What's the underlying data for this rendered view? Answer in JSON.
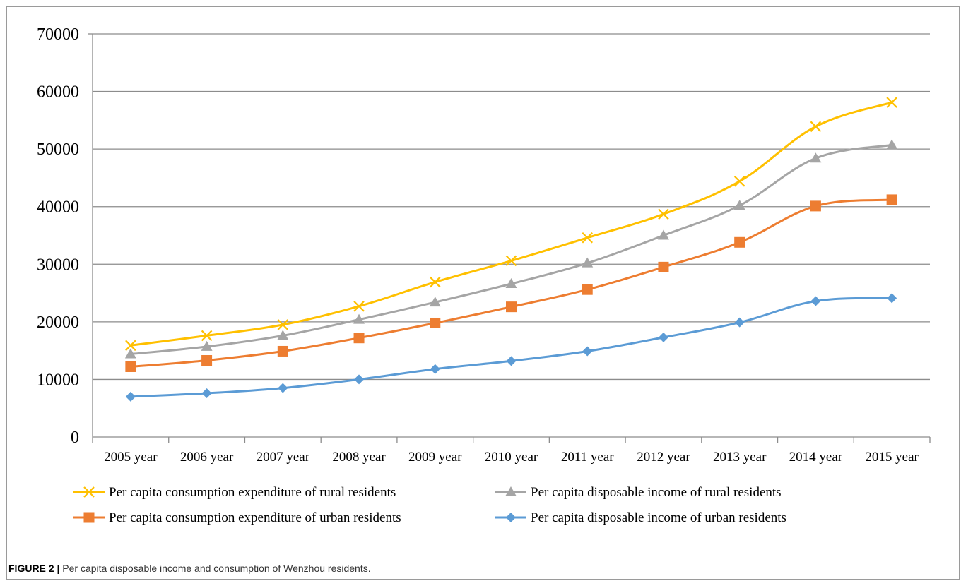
{
  "caption": {
    "label": "FIGURE 2 |",
    "text": "Per capita disposable income and consumption of Wenzhou residents."
  },
  "chart_data": {
    "type": "line",
    "title": "",
    "xlabel": "",
    "ylabel": "",
    "categories": [
      "2005 year",
      "2006 year",
      "2007 year",
      "2008 year",
      "2009 year",
      "2010 year",
      "2011 year",
      "2012 year",
      "2013 year",
      "2014 year",
      "2015 year"
    ],
    "ylim": [
      0,
      70000
    ],
    "yticks": [
      0,
      10000,
      20000,
      30000,
      40000,
      50000,
      60000,
      70000
    ],
    "grid": "horizontal",
    "legend_position": "bottom",
    "series": [
      {
        "name": "Per capita consumption expenditure of rural residents",
        "color": "#FFC000",
        "marker": "x",
        "values": [
          15900,
          17600,
          19500,
          22700,
          26900,
          30600,
          34600,
          38700,
          44400,
          53900,
          58100
        ]
      },
      {
        "name": "Per capita disposable income of rural residents",
        "color": "#A5A5A5",
        "marker": "triangle",
        "values": [
          14400,
          15700,
          17600,
          20400,
          23400,
          26600,
          30200,
          35000,
          40200,
          48400,
          50700
        ]
      },
      {
        "name": "Per capita consumption expenditure of urban residents",
        "color": "#ED7D31",
        "marker": "square",
        "values": [
          12200,
          13300,
          14900,
          17200,
          19800,
          22600,
          25600,
          29500,
          33800,
          40100,
          41200
        ]
      },
      {
        "name": "Per capita disposable income of urban residents",
        "color": "#5B9BD5",
        "marker": "diamond",
        "values": [
          7000,
          7600,
          8500,
          10000,
          11800,
          13200,
          14900,
          17300,
          19900,
          23600,
          24100
        ]
      }
    ]
  }
}
